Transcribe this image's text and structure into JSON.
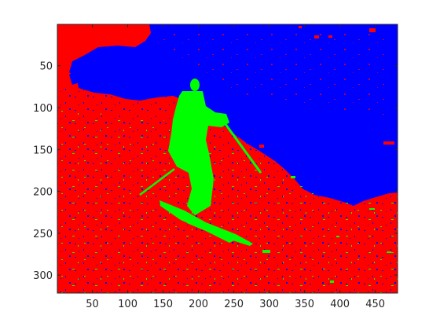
{
  "figure": {
    "colors": {
      "background": "#ffffff",
      "foreground_class": "#00ff00",
      "ground_class": "#ff0000",
      "sky_class": "#0000ff",
      "axis": "#262626"
    }
  },
  "axes": {
    "x": {
      "range": [
        0.5,
        481.5
      ],
      "ticks": [
        50,
        100,
        150,
        200,
        250,
        300,
        350,
        400,
        450
      ],
      "labels": [
        "50",
        "100",
        "150",
        "200",
        "250",
        "300",
        "350",
        "400",
        "450"
      ]
    },
    "y": {
      "range": [
        0.5,
        321.5
      ],
      "direction": "reverse",
      "ticks": [
        50,
        100,
        150,
        200,
        250,
        300
      ],
      "labels": [
        "50",
        "100",
        "150",
        "200",
        "250",
        "300"
      ]
    }
  }
}
